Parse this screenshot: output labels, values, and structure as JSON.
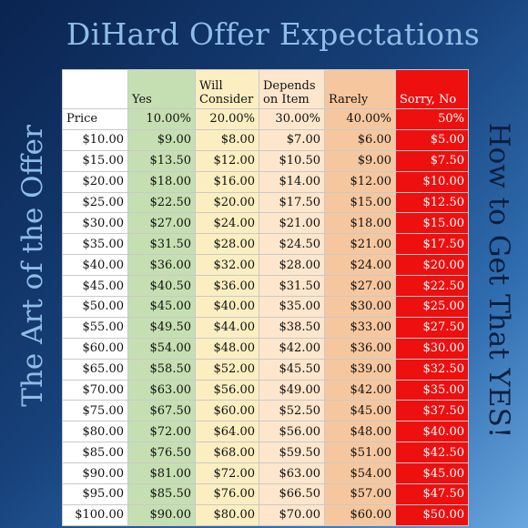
{
  "title": "DiHard Offer Expectations",
  "side_left": "The Art of the Offer",
  "side_right": "How to Get That YES!",
  "headers": [
    "",
    "Yes",
    "Will\nConsider",
    "Depends\non Item",
    "Rarely",
    "Sorry, No"
  ],
  "percent_row": [
    "Price",
    "10.00%",
    "20.00%",
    "30.00%",
    "40.00%",
    "50%"
  ],
  "rows": [
    [
      "$10.00",
      "$9.00",
      "$8.00",
      "$7.00",
      "$6.00",
      "$5.00"
    ],
    [
      "$15.00",
      "$13.50",
      "$12.00",
      "$10.50",
      "$9.00",
      "$7.50"
    ],
    [
      "$20.00",
      "$18.00",
      "$16.00",
      "$14.00",
      "$12.00",
      "$10.00"
    ],
    [
      "$25.00",
      "$22.50",
      "$20.00",
      "$17.50",
      "$15.00",
      "$12.50"
    ],
    [
      "$30.00",
      "$27.00",
      "$24.00",
      "$21.00",
      "$18.00",
      "$15.00"
    ],
    [
      "$35.00",
      "$31.50",
      "$28.00",
      "$24.50",
      "$21.00",
      "$17.50"
    ],
    [
      "$40.00",
      "$36.00",
      "$32.00",
      "$28.00",
      "$24.00",
      "$20.00"
    ],
    [
      "$45.00",
      "$40.50",
      "$36.00",
      "$31.50",
      "$27.00",
      "$22.50"
    ],
    [
      "$50.00",
      "$45.00",
      "$40.00",
      "$35.00",
      "$30.00",
      "$25.00"
    ],
    [
      "$55.00",
      "$49.50",
      "$44.00",
      "$38.50",
      "$33.00",
      "$27.50"
    ],
    [
      "$60.00",
      "$54.00",
      "$48.00",
      "$42.00",
      "$36.00",
      "$30.00"
    ],
    [
      "$65.00",
      "$58.50",
      "$52.00",
      "$45.50",
      "$39.00",
      "$32.50"
    ],
    [
      "$70.00",
      "$63.00",
      "$56.00",
      "$49.00",
      "$42.00",
      "$35.00"
    ],
    [
      "$75.00",
      "$67.50",
      "$60.00",
      "$52.50",
      "$45.00",
      "$37.50"
    ],
    [
      "$80.00",
      "$72.00",
      "$64.00",
      "$56.00",
      "$48.00",
      "$40.00"
    ],
    [
      "$85.00",
      "$76.50",
      "$68.00",
      "$59.50",
      "$51.00",
      "$42.50"
    ],
    [
      "$90.00",
      "$81.00",
      "$72.00",
      "$63.00",
      "$54.00",
      "$45.00"
    ],
    [
      "$95.00",
      "$85.50",
      "$76.00",
      "$66.50",
      "$57.00",
      "$47.50"
    ],
    [
      "$100.00",
      "$90.00",
      "$80.00",
      "$70.00",
      "$60.00",
      "$50.00"
    ]
  ],
  "colors": {
    "price": "#ffffff",
    "yes": "#c6dfb2",
    "will_consider": "#fbeec1",
    "depends": "#fde6cc",
    "rarely": "#f6c79f",
    "sorry_no": "#ee0f0f",
    "title_text": "#8fbde8"
  }
}
